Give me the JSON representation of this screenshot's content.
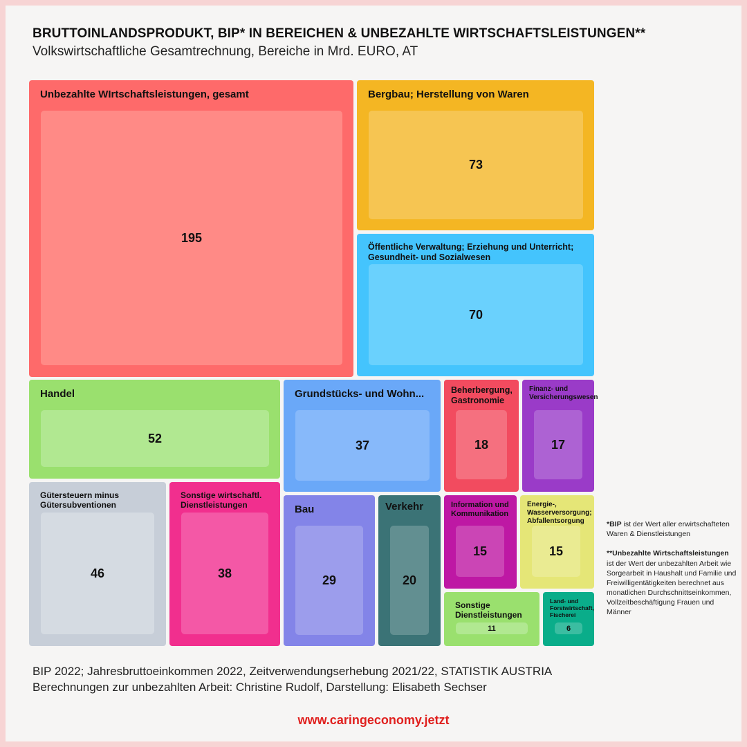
{
  "title": "BRUTTOINLANDSPRODUKT, BIP* IN BEREICHEN & UNBEZAHLTE WIRTSCHAFTSLEISTUNGEN**",
  "subtitle": "Volkswirtschaftliche Gesamtrechnung, Bereiche in Mrd. EURO, AT",
  "chart_data": {
    "type": "treemap",
    "unit": "Mrd. EURO",
    "items": [
      {
        "label": "Unbezahlte WIrtschaftsleistungen, gesamt",
        "value": 195,
        "color": "#fe6a6a",
        "inner_color": "#ff8a86"
      },
      {
        "label": "Bergbau; Herstellung von Waren",
        "value": 73,
        "color": "#f4b623",
        "inner_color": "#f6c552"
      },
      {
        "label": "Öffentliche Verwaltung; Erziehung und Unterricht; Gesundheit- und Sozialwesen",
        "value": 70,
        "color": "#44c4fd",
        "inner_color": "#6ad1fd"
      },
      {
        "label": "Handel",
        "value": 52,
        "color": "#9ae06e",
        "inner_color": "#b1e891"
      },
      {
        "label": "Grundstücks- und Wohn...",
        "value": 37,
        "color": "#6aa8f8",
        "inner_color": "#87b9fa"
      },
      {
        "label": "Beherbergung, Gastronomie",
        "value": 18,
        "color": "#f24b5f",
        "inner_color": "#f5707f"
      },
      {
        "label": "Finanz- und Versicherungswesen",
        "value": 17,
        "color": "#9a3bc8",
        "inner_color": "#ad62d3"
      },
      {
        "label": "Gütersteuern minus Gütersubventionen",
        "value": 46,
        "color": "#c7ced8",
        "inner_color": "#d5dbe2"
      },
      {
        "label": "Sonstige wirtschaftl. Dienstleistungen",
        "value": 38,
        "color": "#f12f8e",
        "inner_color": "#f458a6"
      },
      {
        "label": "Bau",
        "value": 29,
        "color": "#8384e8",
        "inner_color": "#9c9dec"
      },
      {
        "label": "Verkehr",
        "value": 20,
        "color": "#3b7376",
        "inner_color": "#628f91"
      },
      {
        "label": "Information und Kommunikation",
        "value": 15,
        "color": "#be18a4",
        "inner_color": "#cb45b5"
      },
      {
        "label": "Energie-, Wasserversorgung; Abfallentsorgung",
        "value": 15,
        "color": "#e5e677",
        "inner_color": "#eaeb92"
      },
      {
        "label": "Sonstige Dienstleistungen",
        "value": 11,
        "color": "#9ae06e",
        "inner_color": "#b1e891"
      },
      {
        "label": "Land- und Forstwirtschaft, Fischerei",
        "value": 6,
        "color": "#0aad8a",
        "inner_color": "#3bbda1"
      }
    ]
  },
  "notes": {
    "bip_term": "*BIP",
    "bip_text": " ist der Wert aller erwirtschafteten Waren & Dienstleistungen",
    "unpaid_term": "**Unbezahlte Wirtschaftsleistungen",
    "unpaid_text": " ist der Wert der unbezahlten Arbeit wie Sorgearbeit in Haushalt und Familie und Freiwilligentätigkeiten berechnet aus monatlichen Durchschnittseinkommen, Vollzeitbeschäftigung Frauen und Männer"
  },
  "source": {
    "line1": "BIP 2022; Jahresbruttoeinkommen 2022, Zeitverwendungserhebung 2021/22, STATISTIK AUSTRIA",
    "line2": "Berechnungen zur unbezahlten Arbeit: Christine Rudolf, Darstellung: Elisabeth Sechser"
  },
  "url": "www.caringeconomy.jetzt"
}
